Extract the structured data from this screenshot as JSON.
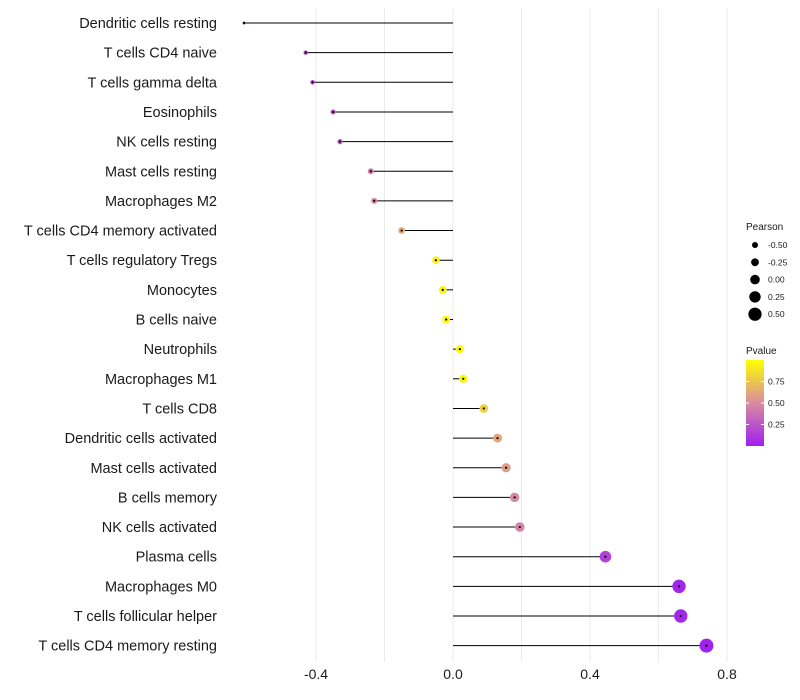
{
  "chart_data": {
    "type": "lollipop",
    "title": "",
    "xlabel": "",
    "ylabel": "",
    "xlim": [
      -0.62,
      0.8
    ],
    "xticks": [
      -0.4,
      0.0,
      0.4,
      0.8
    ],
    "xtick_labels": [
      "-0.4",
      "0.0",
      "0.4",
      "0.8"
    ],
    "grid": true,
    "colors": {
      "low": "#a020f0",
      "mid": "#d88ba0",
      "high": "#ffff00",
      "stem": "#000000"
    },
    "categories": [
      "Dendritic cells resting",
      "T cells CD4 naive",
      "T cells gamma delta",
      "Eosinophils",
      "NK cells resting",
      "Mast cells resting",
      "Macrophages M2",
      "T cells CD4 memory activated",
      "T cells regulatory  Tregs ",
      "Monocytes",
      "B cells naive",
      "Neutrophils",
      "Macrophages M1",
      "T cells CD8",
      "Dendritic cells activated",
      "Mast cells activated",
      "B cells memory",
      "NK cells activated",
      "Plasma cells",
      "Macrophages M0",
      "T cells follicular helper",
      "T cells CD4 memory resting"
    ],
    "pearson": [
      -0.61,
      -0.43,
      -0.41,
      -0.35,
      -0.33,
      -0.24,
      -0.23,
      -0.15,
      -0.05,
      -0.03,
      -0.02,
      0.02,
      0.03,
      0.09,
      0.13,
      0.155,
      0.18,
      0.195,
      0.445,
      0.66,
      0.665,
      0.74
    ],
    "pvalue": [
      0.02,
      0.2,
      0.22,
      0.25,
      0.26,
      0.45,
      0.47,
      0.65,
      0.95,
      0.97,
      0.98,
      0.98,
      0.96,
      0.8,
      0.62,
      0.58,
      0.5,
      0.46,
      0.15,
      0.03,
      0.03,
      0.01
    ],
    "legend": {
      "size_title": "Pearson",
      "size_breaks": [
        "-0.50",
        "-0.25",
        "0.00",
        "0.25",
        "0.50"
      ],
      "color_title": "Pvalue",
      "color_breaks": [
        "0.75",
        "0.50",
        "0.25"
      ],
      "color_range": [
        0.0,
        1.0
      ]
    }
  }
}
